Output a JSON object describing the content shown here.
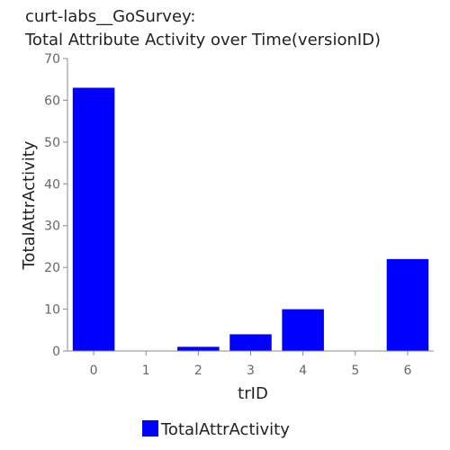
{
  "title_lines": [
    "curt-labs__GoSurvey:",
    "Total Attribute Activity over Time(versionID)"
  ],
  "chart_data": {
    "type": "bar",
    "categories": [
      "0",
      "1",
      "2",
      "3",
      "4",
      "5",
      "6"
    ],
    "values": [
      63,
      0,
      1,
      4,
      10,
      0,
      22
    ],
    "xlabel": "trID",
    "ylabel": "TotalAttrActivity",
    "ylim": [
      0,
      70
    ],
    "yticks": [
      0,
      10,
      20,
      30,
      40,
      50,
      60,
      70
    ],
    "bar_color": "#0000ff",
    "grid": false,
    "legend_position": "bottom-center",
    "series": [
      {
        "name": "TotalAttrActivity",
        "values": [
          63,
          0,
          1,
          4,
          10,
          0,
          22
        ]
      }
    ]
  }
}
